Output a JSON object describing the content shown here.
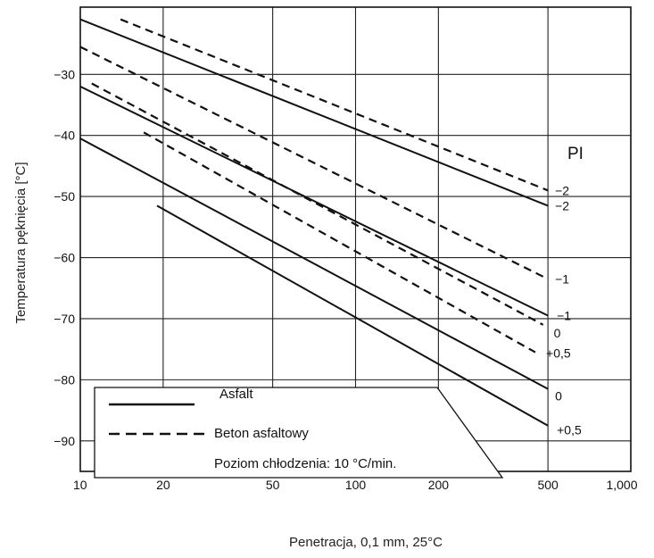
{
  "chart_data": {
    "type": "line",
    "xscale": "log",
    "xlabel": "Penetracja, 0,1 mm, 25°C",
    "ylabel": "Temperatura pęknięcia [°C]",
    "x_ticks": [
      10,
      20,
      50,
      100,
      200,
      500,
      1000
    ],
    "x_tick_labels": [
      "10",
      "20",
      "50",
      "100",
      "200",
      "500",
      "1,000"
    ],
    "y_ticks": [
      -30,
      -40,
      -50,
      -60,
      -70,
      -80,
      -90
    ],
    "y_tick_labels": [
      "−30",
      "−40",
      "−50",
      "−60",
      "−70",
      "−80",
      "−90"
    ],
    "xlim": [
      10,
      1000
    ],
    "ylim": [
      -95,
      -19
    ],
    "grid": true,
    "annotation": "PI",
    "legend": {
      "placement": "bottom-left",
      "entries": [
        {
          "label": "Asfalt",
          "style": "solid"
        },
        {
          "label": "Beton asfaltowy",
          "style": "dashed"
        }
      ],
      "note": "Poziom chłodzenia: 10 °C/min."
    },
    "series": [
      {
        "label_text": "−2",
        "style": "solid",
        "x": [
          10,
          500
        ],
        "y": [
          -21,
          -51.5
        ]
      },
      {
        "label_text": "−1",
        "style": "solid",
        "x": [
          10,
          500
        ],
        "y": [
          -32,
          -69.5
        ]
      },
      {
        "label_text": "0",
        "style": "solid",
        "x": [
          10,
          500
        ],
        "y": [
          -40.5,
          -81.5
        ]
      },
      {
        "label_text": "+0,5",
        "style": "solid",
        "x": [
          19,
          500
        ],
        "y": [
          -51.5,
          -87.5
        ]
      },
      {
        "label_text": "−2",
        "style": "dashed",
        "x": [
          14,
          500
        ],
        "y": [
          -21,
          -49
        ]
      },
      {
        "label_text": "−1",
        "style": "dashed",
        "x": [
          10,
          500
        ],
        "y": [
          -25.5,
          -63.5
        ]
      },
      {
        "label_text": "0",
        "style": "dashed",
        "x": [
          11,
          480
        ],
        "y": [
          -31.5,
          -71
        ]
      },
      {
        "label_text": "+0,5",
        "style": "dashed",
        "x": [
          17,
          450
        ],
        "y": [
          -39.5,
          -75.5
        ]
      }
    ]
  }
}
